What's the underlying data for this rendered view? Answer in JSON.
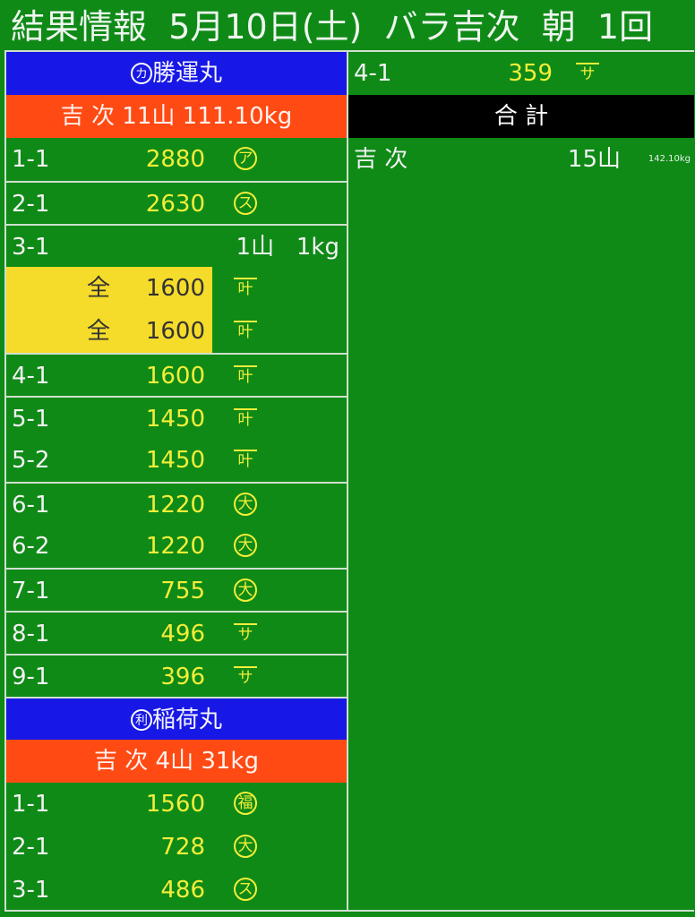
{
  "header": {
    "title": "結果情報",
    "date": "5月10日(土)",
    "item": "バラ吉次",
    "session": "朝",
    "round": "1回"
  },
  "colors": {
    "background": "#0f8a17",
    "boat_header": "#1818e6",
    "summary_header": "#ff4a14",
    "total_header": "#000000",
    "price": "#f4ee3a"
  },
  "left": [
    {
      "boat_mark": "カ",
      "boat_name": "勝運丸",
      "summary": "吉 次 11山 111.10kg",
      "lots": [
        {
          "lot": "1-1",
          "price": "2880",
          "buyer": "ア",
          "style": "c",
          "sep": false
        },
        {
          "lot": "2-1",
          "price": "2630",
          "buyer": "ス",
          "style": "c",
          "sep": true
        },
        {
          "lot": "3-1",
          "price": "",
          "buyer": "",
          "sep": true,
          "qty": "1山",
          "weight": "1kg"
        },
        {
          "lot": "",
          "zen": "全",
          "price": "1600",
          "buyer": "叶",
          "style": "o",
          "sep": false,
          "highlight": true
        },
        {
          "lot": "",
          "zen": "全",
          "price": "1600",
          "buyer": "叶",
          "style": "o",
          "sep": false,
          "highlight": true
        },
        {
          "lot": "4-1",
          "price": "1600",
          "buyer": "叶",
          "style": "o",
          "sep": true
        },
        {
          "lot": "5-1",
          "price": "1450",
          "buyer": "叶",
          "style": "o",
          "sep": true
        },
        {
          "lot": "5-2",
          "price": "1450",
          "buyer": "叶",
          "style": "o",
          "sep": false
        },
        {
          "lot": "6-1",
          "price": "1220",
          "buyer": "大",
          "style": "c",
          "sep": true
        },
        {
          "lot": "6-2",
          "price": "1220",
          "buyer": "大",
          "style": "c",
          "sep": false
        },
        {
          "lot": "7-1",
          "price": "755",
          "buyer": "大",
          "style": "c",
          "sep": true
        },
        {
          "lot": "8-1",
          "price": "496",
          "buyer": "サ",
          "style": "o",
          "sep": true
        },
        {
          "lot": "9-1",
          "price": "396",
          "buyer": "サ",
          "style": "o",
          "sep": true
        }
      ]
    },
    {
      "boat_mark": "利",
      "boat_name": "稲荷丸",
      "summary": "吉 次 4山 31kg",
      "lots": [
        {
          "lot": "1-1",
          "price": "1560",
          "buyer": "福",
          "style": "c",
          "sep": false
        },
        {
          "lot": "2-1",
          "price": "728",
          "buyer": "大",
          "style": "c",
          "sep": false
        },
        {
          "lot": "3-1",
          "price": "486",
          "buyer": "ス",
          "style": "c",
          "sep": false
        }
      ]
    }
  ],
  "right": {
    "lots": [
      {
        "lot": "4-1",
        "price": "359",
        "buyer": "サ",
        "style": "o"
      }
    ],
    "total_label": "合 計",
    "total": {
      "item": "吉 次",
      "qty": "15山",
      "weight": "142.10kg"
    }
  }
}
